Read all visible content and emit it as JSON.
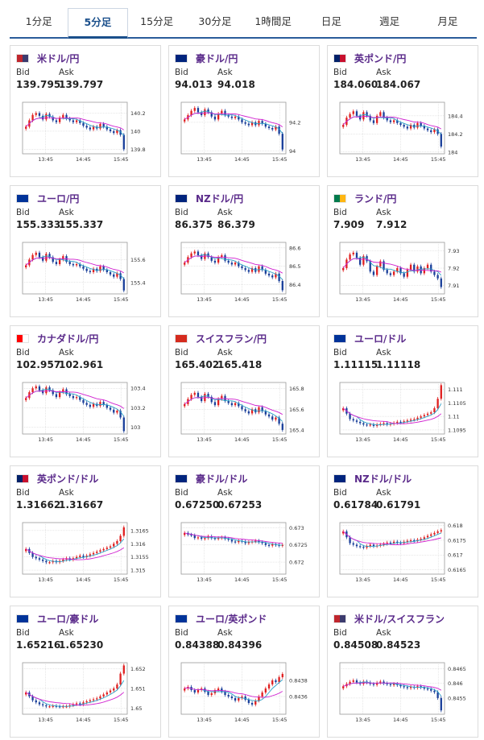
{
  "tabs": [
    {
      "label": "1分足",
      "active": false
    },
    {
      "label": "5分足",
      "active": true
    },
    {
      "label": "15分足",
      "active": false
    },
    {
      "label": "30分足",
      "active": false
    },
    {
      "label": "1時間足",
      "active": false
    },
    {
      "label": "日足",
      "active": false
    },
    {
      "label": "週足",
      "active": false
    },
    {
      "label": "月足",
      "active": false
    }
  ],
  "labels": {
    "bid": "Bid",
    "ask": "Ask"
  },
  "colors": {
    "pair_text": "#5a2a8a",
    "up_candle": "#e02020",
    "down_candle": "#1a3f9a",
    "ma_short": "#2aa0c8",
    "ma_long": "#d020d0",
    "tab_active": "#1a4f8b"
  },
  "cards": [
    {
      "pair": "米ドル/円",
      "flag": "us-jp-flag-icon",
      "bid": "139.795",
      "ask": "139.797",
      "chart_data": {
        "type": "candlestick",
        "x_ticks": [
          "13:45",
          "14:45",
          "15:45"
        ],
        "y_ticks": [
          "140.2",
          "140",
          "139.8"
        ],
        "ylim": [
          139.75,
          140.32
        ],
        "close": [
          140.05,
          140.12,
          140.18,
          140.2,
          140.17,
          140.13,
          140.19,
          140.16,
          140.12,
          140.1,
          140.15,
          140.18,
          140.14,
          140.12,
          140.1,
          140.12,
          140.09,
          140.06,
          140.04,
          140.02,
          140.05,
          140.03,
          140.08,
          140.05,
          140.02,
          140.0,
          139.98,
          140.01,
          139.96,
          139.8
        ]
      }
    },
    {
      "pair": "豪ドル/円",
      "flag": "au-jp-flag-icon",
      "bid": "94.013",
      "ask": "94.018",
      "chart_data": {
        "type": "candlestick",
        "x_ticks": [
          "13:45",
          "14:45",
          "15:45"
        ],
        "y_ticks": [
          "94.2",
          "94"
        ],
        "ylim": [
          93.98,
          94.34
        ],
        "close": [
          94.22,
          94.25,
          94.28,
          94.3,
          94.27,
          94.25,
          94.29,
          94.27,
          94.24,
          94.22,
          94.26,
          94.28,
          94.25,
          94.24,
          94.23,
          94.24,
          94.22,
          94.2,
          94.19,
          94.18,
          94.2,
          94.18,
          94.21,
          94.19,
          94.17,
          94.16,
          94.15,
          94.17,
          94.12,
          94.01
        ]
      }
    },
    {
      "pair": "英ポンド/円",
      "flag": "gb-jp-flag-icon",
      "bid": "184.060",
      "ask": "184.067",
      "chart_data": {
        "type": "candlestick",
        "x_ticks": [
          "13:45",
          "14:45",
          "15:45"
        ],
        "y_ticks": [
          "184.4",
          "184.2",
          "184"
        ],
        "ylim": [
          183.98,
          184.55
        ],
        "close": [
          184.3,
          184.38,
          184.42,
          184.45,
          184.4,
          184.36,
          184.44,
          184.4,
          184.35,
          184.32,
          184.4,
          184.44,
          184.38,
          184.35,
          184.33,
          184.35,
          184.32,
          184.3,
          184.28,
          184.26,
          184.3,
          184.27,
          184.32,
          184.29,
          184.26,
          184.24,
          184.22,
          184.25,
          184.2,
          184.06
        ]
      }
    },
    {
      "pair": "ユーロ/円",
      "flag": "eu-jp-flag-icon",
      "bid": "155.333",
      "ask": "155.337",
      "chart_data": {
        "type": "candlestick",
        "x_ticks": [
          "13:45",
          "14:45",
          "15:45"
        ],
        "y_ticks": [
          "155.6",
          "155.4"
        ],
        "ylim": [
          155.3,
          155.75
        ],
        "close": [
          155.55,
          155.6,
          155.64,
          155.66,
          155.62,
          155.59,
          155.65,
          155.62,
          155.58,
          155.56,
          155.6,
          155.63,
          155.58,
          155.56,
          155.55,
          155.56,
          155.54,
          155.52,
          155.5,
          155.49,
          155.52,
          155.5,
          155.54,
          155.51,
          155.49,
          155.47,
          155.45,
          155.48,
          155.43,
          155.33
        ]
      }
    },
    {
      "pair": "NZドル/円",
      "flag": "nz-jp-flag-icon",
      "bid": "86.375",
      "ask": "86.379",
      "chart_data": {
        "type": "candlestick",
        "x_ticks": [
          "13:45",
          "14:45",
          "15:45"
        ],
        "y_ticks": [
          "86.6",
          "86.5",
          "86.4"
        ],
        "ylim": [
          86.35,
          86.63
        ],
        "close": [
          86.52,
          86.55,
          86.57,
          86.58,
          86.56,
          86.54,
          86.57,
          86.55,
          86.53,
          86.52,
          86.55,
          86.56,
          86.53,
          86.52,
          86.51,
          86.52,
          86.5,
          86.49,
          86.48,
          86.47,
          86.49,
          86.47,
          86.5,
          86.48,
          86.46,
          86.45,
          86.44,
          86.46,
          86.42,
          86.37
        ]
      }
    },
    {
      "pair": "ランド/円",
      "flag": "za-jp-flag-icon",
      "bid": "7.909",
      "ask": "7.912",
      "chart_data": {
        "type": "candlestick",
        "x_ticks": [
          "13:45",
          "14:45",
          "15:45"
        ],
        "y_ticks": [
          "7.93",
          "7.92",
          "7.91"
        ],
        "ylim": [
          7.905,
          7.935
        ],
        "close": [
          7.92,
          7.925,
          7.928,
          7.929,
          7.926,
          7.922,
          7.927,
          7.924,
          7.918,
          7.916,
          7.921,
          7.924,
          7.919,
          7.917,
          7.916,
          7.918,
          7.92,
          7.917,
          7.915,
          7.919,
          7.922,
          7.918,
          7.921,
          7.917,
          7.92,
          7.922,
          7.918,
          7.916,
          7.914,
          7.909
        ]
      }
    },
    {
      "pair": "カナダドル/円",
      "flag": "ca-jp-flag-icon",
      "bid": "102.957",
      "ask": "102.961",
      "chart_data": {
        "type": "candlestick",
        "x_ticks": [
          "13:45",
          "14:45",
          "15:45"
        ],
        "y_ticks": [
          "103.4",
          "103.2",
          "103"
        ],
        "ylim": [
          102.93,
          103.46
        ],
        "close": [
          103.3,
          103.36,
          103.4,
          103.42,
          103.38,
          103.35,
          103.41,
          103.38,
          103.34,
          103.31,
          103.36,
          103.39,
          103.34,
          103.32,
          103.3,
          103.31,
          103.28,
          103.25,
          103.23,
          103.21,
          103.24,
          103.22,
          103.26,
          103.23,
          103.2,
          103.18,
          103.15,
          103.17,
          103.1,
          102.96
        ]
      }
    },
    {
      "pair": "スイスフラン/円",
      "flag": "ch-jp-flag-icon",
      "bid": "165.402",
      "ask": "165.418",
      "chart_data": {
        "type": "candlestick",
        "x_ticks": [
          "13:45",
          "14:45",
          "15:45"
        ],
        "y_ticks": [
          "165.8",
          "165.6",
          "165.4"
        ],
        "ylim": [
          165.36,
          165.86
        ],
        "close": [
          165.65,
          165.7,
          165.74,
          165.76,
          165.72,
          165.68,
          165.75,
          165.72,
          165.67,
          165.64,
          165.7,
          165.73,
          165.68,
          165.66,
          165.64,
          165.66,
          165.63,
          165.6,
          165.58,
          165.56,
          165.6,
          165.57,
          165.62,
          165.58,
          165.55,
          165.53,
          165.5,
          165.52,
          165.46,
          165.4
        ]
      }
    },
    {
      "pair": "ユーロ/ドル",
      "flag": "eu-us-flag-icon",
      "bid": "1.11115",
      "ask": "1.11118",
      "chart_data": {
        "type": "candlestick",
        "x_ticks": [
          "13:45",
          "14:45",
          "15:45"
        ],
        "y_ticks": [
          "1.111",
          "1.1105",
          "1.11",
          "1.1095"
        ],
        "ylim": [
          1.10935,
          1.11125
        ],
        "close": [
          1.1103,
          1.1101,
          1.1099,
          1.10985,
          1.1098,
          1.10975,
          1.1097,
          1.10968,
          1.1097,
          1.10965,
          1.1097,
          1.10972,
          1.10975,
          1.1097,
          1.10973,
          1.10976,
          1.1098,
          1.10978,
          1.10982,
          1.10985,
          1.10988,
          1.1099,
          1.10995,
          1.11,
          1.11005,
          1.1101,
          1.11015,
          1.1103,
          1.11065,
          1.11115
        ]
      }
    },
    {
      "pair": "英ポンド/ドル",
      "flag": "gb-us-flag-icon",
      "bid": "1.31662",
      "ask": "1.31667",
      "chart_data": {
        "type": "candlestick",
        "x_ticks": [
          "13:45",
          "14:45",
          "15:45"
        ],
        "y_ticks": [
          "1.3165",
          "1.316",
          "1.3155",
          "1.315"
        ],
        "ylim": [
          1.31485,
          1.3168
        ],
        "close": [
          1.3158,
          1.31565,
          1.3155,
          1.31545,
          1.3154,
          1.31535,
          1.3153,
          1.3153,
          1.31535,
          1.3153,
          1.31535,
          1.3154,
          1.31545,
          1.3154,
          1.31545,
          1.3155,
          1.31555,
          1.3155,
          1.31555,
          1.3156,
          1.31565,
          1.3157,
          1.31575,
          1.3158,
          1.31585,
          1.3159,
          1.316,
          1.3161,
          1.3163,
          1.31662
        ]
      }
    },
    {
      "pair": "豪ドル/ドル",
      "flag": "au-us-flag-icon",
      "bid": "0.67250",
      "ask": "0.67253",
      "chart_data": {
        "type": "candlestick",
        "x_ticks": [
          "13:45",
          "14:45",
          "15:45"
        ],
        "y_ticks": [
          "0.673",
          "0.6725",
          "0.672"
        ],
        "ylim": [
          0.67165,
          0.67315
        ],
        "close": [
          0.67285,
          0.6728,
          0.67278,
          0.6727,
          0.67272,
          0.67268,
          0.6727,
          0.67275,
          0.6727,
          0.67268,
          0.6727,
          0.67272,
          0.67268,
          0.67265,
          0.6726,
          0.67258,
          0.67262,
          0.6726,
          0.67255,
          0.67258,
          0.6726,
          0.67262,
          0.67258,
          0.67255,
          0.6725,
          0.67248,
          0.67252,
          0.6725,
          0.67248,
          0.6725
        ]
      }
    },
    {
      "pair": "NZドル/ドル",
      "flag": "nz-us-flag-icon",
      "bid": "0.61784",
      "ask": "0.61791",
      "chart_data": {
        "type": "candlestick",
        "x_ticks": [
          "13:45",
          "14:45",
          "15:45"
        ],
        "y_ticks": [
          "0.618",
          "0.6175",
          "0.617",
          "0.6165"
        ],
        "ylim": [
          0.61635,
          0.6181
        ],
        "close": [
          0.6178,
          0.6176,
          0.6174,
          0.61735,
          0.6173,
          0.61728,
          0.61725,
          0.6173,
          0.61735,
          0.6173,
          0.61732,
          0.61735,
          0.61738,
          0.61742,
          0.6174,
          0.61745,
          0.61742,
          0.6174,
          0.61745,
          0.61748,
          0.6175,
          0.61748,
          0.61752,
          0.61755,
          0.6176,
          0.61765,
          0.6177,
          0.61775,
          0.6178,
          0.61784
        ]
      }
    },
    {
      "pair": "ユーロ/豪ドル",
      "flag": "eu-au-flag-icon",
      "bid": "1.65216",
      "ask": "1.65230",
      "chart_data": {
        "type": "candlestick",
        "x_ticks": [
          "13:45",
          "14:45",
          "15:45"
        ],
        "y_ticks": [
          "1.652",
          "1.651",
          "1.65"
        ],
        "ylim": [
          1.6497,
          1.6523
        ],
        "close": [
          1.6508,
          1.6506,
          1.6504,
          1.6503,
          1.6502,
          1.65015,
          1.6501,
          1.6501,
          1.65012,
          1.6501,
          1.65008,
          1.6501,
          1.6501,
          1.65015,
          1.6502,
          1.65025,
          1.6502,
          1.6503,
          1.65035,
          1.6504,
          1.65045,
          1.6505,
          1.6506,
          1.6507,
          1.6508,
          1.6509,
          1.651,
          1.6512,
          1.65175,
          1.65216
        ]
      }
    },
    {
      "pair": "ユーロ/英ポンド",
      "flag": "eu-gb-flag-icon",
      "bid": "0.84388",
      "ask": "0.84396",
      "chart_data": {
        "type": "candlestick",
        "x_ticks": [
          "13:45",
          "14:45",
          "15:45"
        ],
        "y_ticks": [
          "0.8438",
          "0.8436"
        ],
        "ylim": [
          0.84338,
          0.84402
        ],
        "close": [
          0.8437,
          0.84372,
          0.84368,
          0.84365,
          0.84368,
          0.8437,
          0.84366,
          0.84362,
          0.84364,
          0.84368,
          0.8437,
          0.84366,
          0.84362,
          0.8436,
          0.84358,
          0.84355,
          0.84358,
          0.8436,
          0.84356,
          0.84352,
          0.8435,
          0.84355,
          0.8436,
          0.84365,
          0.8437,
          0.84375,
          0.8438,
          0.84378,
          0.84384,
          0.84388
        ]
      }
    },
    {
      "pair": "米ドル/スイスフラン",
      "flag": "us-ch-flag-icon",
      "bid": "0.84508",
      "ask": "0.84523",
      "chart_data": {
        "type": "candlestick",
        "x_ticks": [
          "13:45",
          "14:45",
          "15:45"
        ],
        "y_ticks": [
          "0.8465",
          "0.846",
          "0.8455"
        ],
        "ylim": [
          0.84495,
          0.8467
        ],
        "close": [
          0.8459,
          0.84598,
          0.84605,
          0.8461,
          0.84603,
          0.84598,
          0.84606,
          0.84603,
          0.84598,
          0.84595,
          0.84602,
          0.84606,
          0.846,
          0.84597,
          0.84594,
          0.84598,
          0.84594,
          0.8459,
          0.84587,
          0.84584,
          0.84588,
          0.84585,
          0.8459,
          0.84586,
          0.84582,
          0.8458,
          0.84575,
          0.8457,
          0.8455,
          0.84508
        ]
      }
    }
  ]
}
